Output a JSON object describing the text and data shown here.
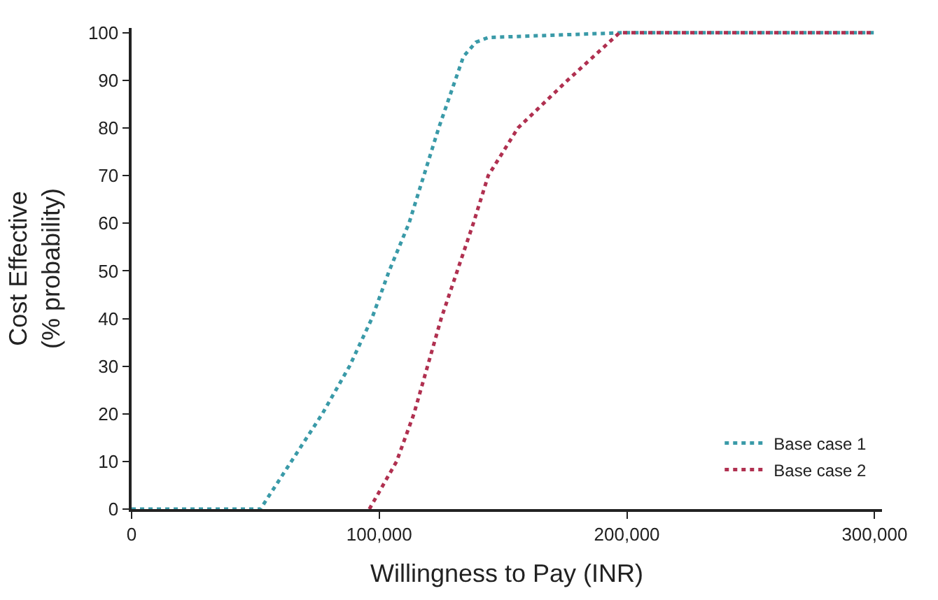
{
  "chart_data": {
    "type": "line",
    "xlabel": "Willingness to Pay (INR)",
    "ylabel": "Cost Effective\n(% probability)",
    "xlim": [
      0,
      303000
    ],
    "ylim": [
      0,
      101
    ],
    "xticks": [
      0,
      {
        "value": 100000,
        "label": "100,000"
      },
      {
        "value": 200000,
        "label": "200,000"
      },
      {
        "value": 300000,
        "label": "300,000"
      }
    ],
    "yticks": [
      0,
      10,
      20,
      30,
      40,
      50,
      60,
      70,
      80,
      90,
      100
    ],
    "legend": "bottom right",
    "line_style": "dotted",
    "marker": "none",
    "series": [
      {
        "name": "Base case 1",
        "color": "#3a9aa8",
        "x": [
          0,
          52000,
          77000,
          88000,
          97000,
          104000,
          112000,
          124000,
          134000,
          139000,
          144000,
          198000,
          300000
        ],
        "values": [
          0,
          0,
          20,
          30,
          40,
          50,
          60,
          80,
          95,
          98,
          99,
          100,
          100
        ]
      },
      {
        "name": "Base case 2",
        "color": "#b03050",
        "x": [
          96000,
          107000,
          114000,
          125000,
          138000,
          144000,
          156000,
          176000,
          197000,
          300000
        ],
        "values": [
          0,
          10,
          20,
          40,
          60,
          70,
          80,
          90,
          100,
          100
        ]
      }
    ]
  }
}
